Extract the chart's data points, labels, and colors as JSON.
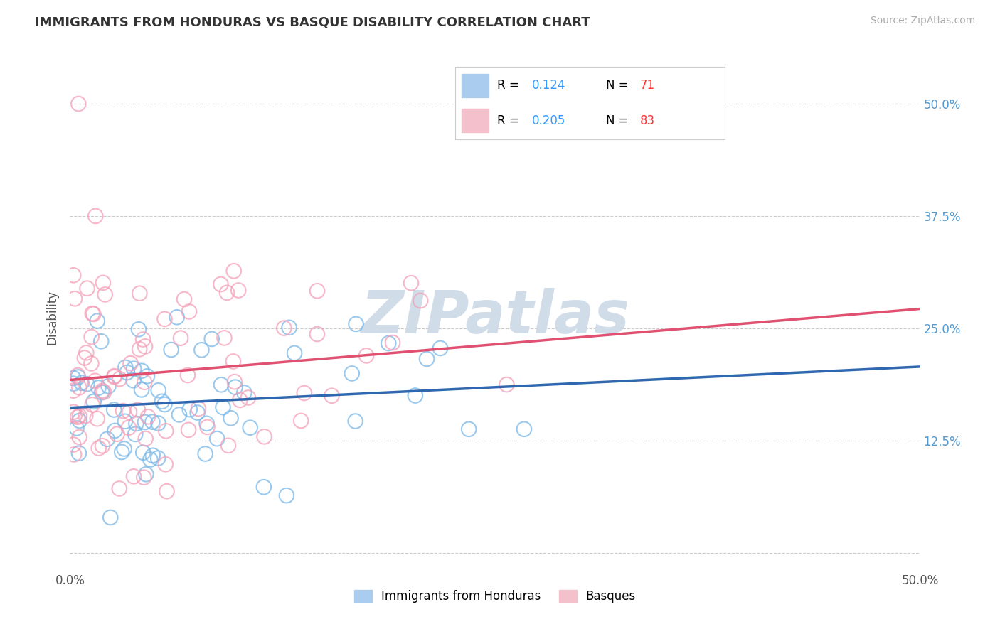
{
  "title": "IMMIGRANTS FROM HONDURAS VS BASQUE DISABILITY CORRELATION CHART",
  "source": "Source: ZipAtlas.com",
  "ylabel": "Disability",
  "legend_label1": "Immigrants from Honduras",
  "legend_label2": "Basques",
  "R1": 0.124,
  "N1": 71,
  "R2": 0.205,
  "N2": 83,
  "xlim": [
    0.0,
    0.5
  ],
  "ylim": [
    -0.02,
    0.545
  ],
  "color_blue": "#7ab8e8",
  "color_pink": "#f4a0b8",
  "color_blue_line": "#3068b0",
  "color_pink_line": "#e05070",
  "background_color": "#ffffff",
  "grid_color": "#cccccc",
  "watermark": "ZIPatlas",
  "watermark_color": "#d0dde8",
  "title_color": "#333333",
  "source_color": "#aaaaaa",
  "ylabel_color": "#555555",
  "tick_color": "#555555",
  "right_tick_color": "#5599cc",
  "legend_r_color": "#3399ff",
  "legend_n_color": "#ff3333"
}
